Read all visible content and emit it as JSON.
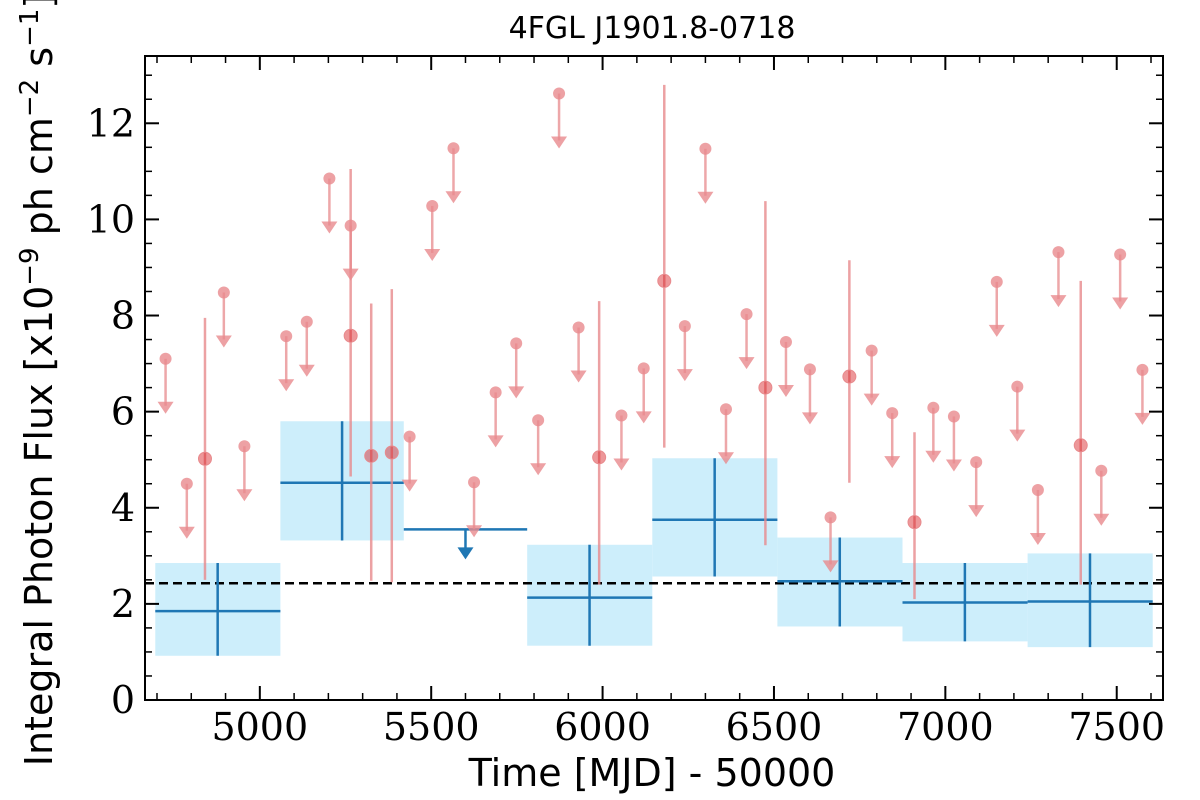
{
  "chart_data": {
    "type": "scatter",
    "title": "4FGL J1901.8-0718",
    "xlabel": "Time [MJD] - 50000",
    "ylabel": "Integral Photon Flux [x10",
    "ylabel_exp": "−9",
    "ylabel_mid": " ph cm",
    "ylabel_exp2": "−2",
    "ylabel_mid2": " s",
    "ylabel_exp3": "−1",
    "ylabel_end": "]",
    "xlim": [
      4665,
      7635
    ],
    "ylim": [
      0,
      13.4
    ],
    "xticks": [
      5000,
      5500,
      6000,
      6500,
      7000,
      7500
    ],
    "xtick_labels": [
      "5000",
      "5500",
      "6000",
      "6500",
      "7000",
      "7500"
    ],
    "yticks": [
      0,
      2,
      4,
      6,
      8,
      10,
      12
    ],
    "ytick_labels": [
      "0",
      "2",
      "4",
      "6",
      "8",
      "10",
      "12"
    ],
    "grid": false,
    "colors": {
      "short_bins": "#e88a8d",
      "long_bins": "#1f77b4",
      "long_bins_band": "#cdeefb",
      "reference_line": "#000000"
    },
    "reference_line": {
      "y": 2.43,
      "style": "dashed"
    },
    "long_bins": [
      {
        "x_start": 4695,
        "x_end": 5060,
        "x": 4877,
        "y": 1.85,
        "yerr_low": 0.92,
        "yerr_high": 2.85
      },
      {
        "x_start": 5060,
        "x_end": 5420,
        "x": 5240,
        "y": 4.52,
        "yerr_low": 3.32,
        "yerr_high": 5.8
      },
      {
        "x_start": 5780,
        "x_end": 6145,
        "x": 5962,
        "y": 2.13,
        "yerr_low": 1.13,
        "yerr_high": 3.23
      },
      {
        "x_start": 6145,
        "x_end": 6510,
        "x": 6327,
        "y": 3.75,
        "yerr_low": 2.57,
        "yerr_high": 5.03
      },
      {
        "x_start": 6510,
        "x_end": 6875,
        "x": 6692,
        "y": 2.47,
        "yerr_low": 1.53,
        "yerr_high": 3.38
      },
      {
        "x_start": 6875,
        "x_end": 7240,
        "x": 7057,
        "y": 2.03,
        "yerr_low": 1.22,
        "yerr_high": 2.85
      },
      {
        "x_start": 7240,
        "x_end": 7605,
        "x": 7422,
        "y": 2.05,
        "yerr_low": 1.1,
        "yerr_high": 3.05
      }
    ],
    "long_upper_limits": [
      {
        "x_start": 5420,
        "x_end": 5780,
        "x": 5600,
        "y": 3.55
      }
    ],
    "short_detections": [
      {
        "x": 4840,
        "y": 5.02,
        "yerr_low": 2.5,
        "yerr_high": 7.95
      },
      {
        "x": 5265,
        "y": 7.58,
        "yerr_low": 4.65,
        "yerr_high": 11.05
      },
      {
        "x": 5325,
        "y": 5.08,
        "yerr_low": 2.48,
        "yerr_high": 8.25
      },
      {
        "x": 5385,
        "y": 5.15,
        "yerr_low": 2.45,
        "yerr_high": 8.55
      },
      {
        "x": 5990,
        "y": 5.05,
        "yerr_low": 2.4,
        "yerr_high": 8.3
      },
      {
        "x": 6180,
        "y": 8.72,
        "yerr_low": 5.25,
        "yerr_high": 12.8
      },
      {
        "x": 6475,
        "y": 6.5,
        "yerr_low": 3.22,
        "yerr_high": 10.38
      },
      {
        "x": 6720,
        "y": 6.73,
        "yerr_low": 4.52,
        "yerr_high": 9.15
      },
      {
        "x": 6910,
        "y": 3.7,
        "yerr_low": 2.1,
        "yerr_high": 5.57
      },
      {
        "x": 7395,
        "y": 5.3,
        "yerr_low": 2.4,
        "yerr_high": 8.72
      }
    ],
    "short_upper_limits": [
      {
        "x": 4725,
        "y": 7.1
      },
      {
        "x": 4787,
        "y": 4.5
      },
      {
        "x": 4895,
        "y": 8.48
      },
      {
        "x": 4955,
        "y": 5.28
      },
      {
        "x": 5077,
        "y": 7.57
      },
      {
        "x": 5137,
        "y": 7.87
      },
      {
        "x": 5203,
        "y": 10.85
      },
      {
        "x": 5265,
        "y": 9.87
      },
      {
        "x": 5437,
        "y": 5.48
      },
      {
        "x": 5503,
        "y": 10.28
      },
      {
        "x": 5565,
        "y": 11.48
      },
      {
        "x": 5625,
        "y": 4.53
      },
      {
        "x": 5688,
        "y": 6.4
      },
      {
        "x": 5748,
        "y": 7.42
      },
      {
        "x": 5812,
        "y": 5.82
      },
      {
        "x": 5873,
        "y": 12.62
      },
      {
        "x": 5930,
        "y": 7.75
      },
      {
        "x": 6055,
        "y": 5.92
      },
      {
        "x": 6120,
        "y": 6.9
      },
      {
        "x": 6240,
        "y": 7.78
      },
      {
        "x": 6300,
        "y": 11.47
      },
      {
        "x": 6360,
        "y": 6.05
      },
      {
        "x": 6420,
        "y": 8.03
      },
      {
        "x": 6535,
        "y": 7.45
      },
      {
        "x": 6605,
        "y": 6.88
      },
      {
        "x": 6665,
        "y": 3.8
      },
      {
        "x": 6785,
        "y": 7.27
      },
      {
        "x": 6845,
        "y": 5.97
      },
      {
        "x": 6965,
        "y": 6.08
      },
      {
        "x": 7025,
        "y": 5.9
      },
      {
        "x": 7090,
        "y": 4.95
      },
      {
        "x": 7150,
        "y": 8.7
      },
      {
        "x": 7210,
        "y": 6.52
      },
      {
        "x": 7270,
        "y": 4.37
      },
      {
        "x": 7330,
        "y": 9.32
      },
      {
        "x": 7455,
        "y": 4.77
      },
      {
        "x": 7510,
        "y": 9.27
      },
      {
        "x": 7575,
        "y": 6.87
      }
    ]
  }
}
